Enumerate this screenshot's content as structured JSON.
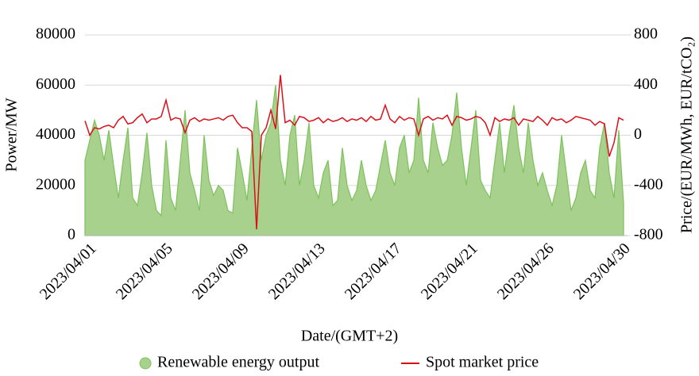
{
  "chart_data": {
    "type": "area_line",
    "x_label": "Date/(GMT+2)",
    "y_label": "Power/MW",
    "y2_label": "Price/(EUR/MWh, EUR/tCO₂)",
    "categories": [
      "2023/04/01",
      null,
      null,
      null,
      null,
      null,
      null,
      null,
      null,
      null,
      null,
      null,
      null,
      null,
      null,
      null,
      "2023/04/05",
      null,
      null,
      null,
      null,
      null,
      null,
      null,
      null,
      null,
      null,
      null,
      null,
      null,
      null,
      null,
      "2023/04/09",
      null,
      null,
      null,
      null,
      null,
      null,
      null,
      null,
      null,
      null,
      null,
      null,
      null,
      null,
      null,
      "2023/04/13",
      null,
      null,
      null,
      null,
      null,
      null,
      null,
      null,
      null,
      null,
      null,
      null,
      null,
      null,
      null,
      "2023/04/17",
      null,
      null,
      null,
      null,
      null,
      null,
      null,
      null,
      null,
      null,
      null,
      null,
      null,
      null,
      null,
      "2023/04/21",
      null,
      null,
      null,
      null,
      null,
      null,
      null,
      null,
      null,
      null,
      null,
      null,
      null,
      null,
      null,
      "2023/04/26",
      null,
      null,
      null,
      null,
      null,
      null,
      null,
      null,
      null,
      null,
      null,
      null,
      null,
      null,
      null,
      "2023/04/30",
      null
    ],
    "series": [
      {
        "name": "Renewable energy output",
        "color": "#a9d18e",
        "edge": "#7cc25a",
        "values": [
          30000,
          38000,
          46000,
          40000,
          30000,
          42000,
          28000,
          15000,
          30000,
          43000,
          15000,
          12000,
          25000,
          41000,
          20000,
          10000,
          8000,
          38000,
          15000,
          10000,
          30000,
          50000,
          25000,
          18000,
          10000,
          40000,
          22000,
          16000,
          20000,
          18000,
          10000,
          9000,
          35000,
          25000,
          14000,
          35000,
          54000,
          30000,
          40000,
          45000,
          60000,
          30000,
          20000,
          40000,
          48000,
          20000,
          30000,
          45000,
          20000,
          15000,
          25000,
          30000,
          12000,
          14000,
          35000,
          20000,
          14000,
          18000,
          30000,
          20000,
          14000,
          18000,
          28000,
          38000,
          25000,
          20000,
          35000,
          40000,
          25000,
          30000,
          55000,
          30000,
          25000,
          45000,
          35000,
          28000,
          30000,
          40000,
          57000,
          35000,
          20000,
          35000,
          50000,
          22000,
          18000,
          15000,
          30000,
          45000,
          25000,
          40000,
          52000,
          35000,
          25000,
          45000,
          30000,
          20000,
          25000,
          18000,
          12000,
          20000,
          40000,
          25000,
          10000,
          15000,
          25000,
          30000,
          18000,
          15000,
          35000,
          45000,
          25000,
          15000,
          42000,
          13000
        ]
      },
      {
        "name": "Spot market price",
        "color": "#d9101a",
        "axis": "y2",
        "values": [
          115,
          0,
          60,
          50,
          70,
          80,
          60,
          120,
          150,
          90,
          100,
          140,
          170,
          100,
          130,
          130,
          150,
          280,
          120,
          140,
          130,
          20,
          120,
          140,
          110,
          130,
          120,
          130,
          140,
          120,
          150,
          160,
          100,
          60,
          60,
          30,
          -750,
          0,
          60,
          200,
          50,
          480,
          100,
          120,
          80,
          150,
          140,
          110,
          120,
          140,
          100,
          130,
          110,
          120,
          140,
          110,
          130,
          120,
          140,
          110,
          150,
          120,
          130,
          240,
          130,
          100,
          150,
          120,
          140,
          130,
          0,
          130,
          150,
          120,
          140,
          130,
          160,
          80,
          150,
          140,
          120,
          130,
          150,
          140,
          100,
          0,
          140,
          110,
          130,
          120,
          140,
          80,
          130,
          120,
          110,
          150,
          120,
          80,
          140,
          120,
          130,
          100,
          120,
          150,
          140,
          130,
          120,
          80,
          110,
          90,
          -170,
          -60,
          140,
          120
        ]
      }
    ],
    "ylim": [
      0,
      80000
    ],
    "yticks": [
      0,
      20000,
      40000,
      60000,
      80000
    ],
    "y2lim": [
      -800,
      800
    ],
    "y2ticks": [
      -800,
      -400,
      0,
      400,
      800
    ],
    "grid": true,
    "legend": "bottom"
  }
}
